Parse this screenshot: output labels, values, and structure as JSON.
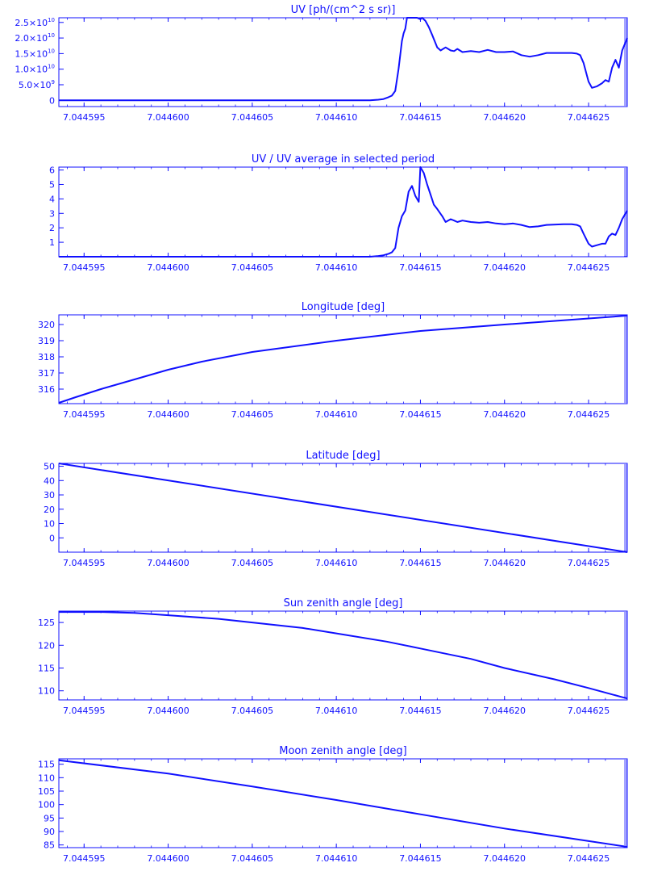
{
  "x_ticks": [
    "7.044595",
    "7.044600",
    "7.044605",
    "7.044610",
    "7.044615",
    "7.044620",
    "7.044625"
  ],
  "colors": {
    "ink": "#1010ff",
    "background": "#ffffff"
  },
  "chart_data": [
    {
      "type": "line",
      "title": "UV [ph/(cm^2 s sr)]",
      "xlim": [
        7.0445935,
        7.0446273
      ],
      "ylim": [
        -2000000000.0,
        26500000000.0
      ],
      "ytick_values": [
        0,
        5000000000.0,
        10000000000.0,
        15000000000.0,
        20000000000.0,
        25000000000.0
      ],
      "yticks": [
        {
          "mant": "0",
          "exp": ""
        },
        {
          "mant": "5.0×10",
          "exp": "9"
        },
        {
          "mant": "1.0×10",
          "exp": "10"
        },
        {
          "mant": "1.5×10",
          "exp": "10"
        },
        {
          "mant": "2.0×10",
          "exp": "10"
        },
        {
          "mant": "2.5×10",
          "exp": "10"
        }
      ],
      "x": [
        7.0445935,
        7.044605,
        7.044612,
        7.0446125,
        7.0446128,
        7.0446131,
        7.0446133,
        7.0446135,
        7.0446137,
        7.0446139,
        7.044614,
        7.0446141,
        7.0446142,
        7.0446143,
        7.0446145,
        7.0446148,
        7.044615,
        7.0446151,
        7.0446153,
        7.0446155,
        7.0446157,
        7.044616,
        7.0446162,
        7.0446165,
        7.0446168,
        7.044617,
        7.0446172,
        7.0446175,
        7.044618,
        7.0446185,
        7.044619,
        7.0446195,
        7.04462,
        7.0446205,
        7.044621,
        7.0446215,
        7.044622,
        7.0446225,
        7.0446235,
        7.044624,
        7.0446243,
        7.0446245,
        7.0446247,
        7.044625,
        7.0446252,
        7.0446255,
        7.0446258,
        7.044626,
        7.0446262,
        7.0446264,
        7.0446266,
        7.0446268,
        7.044627,
        7.0446273
      ],
      "y": [
        0,
        0,
        0,
        200000000.0,
        400000000.0,
        1000000000.0,
        1500000000.0,
        3000000000.0,
        10000000000.0,
        19000000000.0,
        21500000000.0,
        23000000000.0,
        26500000000.0,
        26500000000.0,
        26500000000.0,
        26500000000.0,
        26000000000.0,
        26500000000.0,
        25500000000.0,
        23500000000.0,
        21000000000.0,
        17000000000.0,
        16000000000.0,
        17000000000.0,
        16000000000.0,
        15800000000.0,
        16500000000.0,
        15500000000.0,
        15800000000.0,
        15500000000.0,
        16200000000.0,
        15500000000.0,
        15500000000.0,
        15700000000.0,
        14500000000.0,
        14000000000.0,
        14500000000.0,
        15200000000.0,
        15200000000.0,
        15200000000.0,
        15000000000.0,
        14500000000.0,
        12000000000.0,
        6000000000.0,
        4000000000.0,
        4500000000.0,
        5500000000.0,
        6500000000.0,
        6000000000.0,
        10500000000.0,
        13000000000.0,
        10500000000.0,
        16000000000.0,
        20000000000.0
      ]
    },
    {
      "type": "line",
      "title": "UV / UV average in selected period",
      "xlim": [
        7.0445935,
        7.0446273
      ],
      "ylim": [
        0,
        6.2
      ],
      "ytick_values": [
        1,
        2,
        3,
        4,
        5,
        6
      ],
      "yticks": [
        {
          "mant": "1"
        },
        {
          "mant": "2"
        },
        {
          "mant": "3"
        },
        {
          "mant": "4"
        },
        {
          "mant": "5"
        },
        {
          "mant": "6"
        }
      ],
      "x": [
        7.0445935,
        7.044605,
        7.044612,
        7.0446125,
        7.0446128,
        7.0446131,
        7.0446133,
        7.0446135,
        7.0446137,
        7.0446139,
        7.0446141,
        7.0446143,
        7.0446145,
        7.0446147,
        7.0446149,
        7.044615,
        7.0446152,
        7.0446154,
        7.0446156,
        7.0446158,
        7.044616,
        7.0446163,
        7.0446165,
        7.0446168,
        7.044617,
        7.0446172,
        7.0446175,
        7.044618,
        7.0446185,
        7.044619,
        7.0446195,
        7.04462,
        7.0446205,
        7.044621,
        7.0446215,
        7.044622,
        7.0446225,
        7.0446235,
        7.044624,
        7.0446243,
        7.0446245,
        7.0446247,
        7.044625,
        7.0446252,
        7.0446255,
        7.0446258,
        7.044626,
        7.0446262,
        7.0446264,
        7.0446266,
        7.0446268,
        7.044627,
        7.0446273
      ],
      "y": [
        0,
        0,
        0,
        0.05,
        0.1,
        0.2,
        0.3,
        0.6,
        2.0,
        2.8,
        3.2,
        4.5,
        4.9,
        4.2,
        3.8,
        6.2,
        5.8,
        5.0,
        4.3,
        3.6,
        3.3,
        2.8,
        2.4,
        2.6,
        2.5,
        2.4,
        2.5,
        2.4,
        2.35,
        2.4,
        2.3,
        2.25,
        2.3,
        2.2,
        2.05,
        2.1,
        2.2,
        2.25,
        2.25,
        2.2,
        2.1,
        1.6,
        0.9,
        0.7,
        0.8,
        0.9,
        0.9,
        1.4,
        1.6,
        1.5,
        2.0,
        2.6,
        3.2
      ]
    },
    {
      "type": "line",
      "title": "Longitude [deg]",
      "xlim": [
        7.0445935,
        7.0446273
      ],
      "ylim": [
        315.1,
        320.6
      ],
      "ytick_values": [
        316,
        317,
        318,
        319,
        320
      ],
      "yticks": [
        {
          "mant": "316"
        },
        {
          "mant": "317"
        },
        {
          "mant": "318"
        },
        {
          "mant": "319"
        },
        {
          "mant": "320"
        }
      ],
      "x": [
        7.0445935,
        7.0445945,
        7.044596,
        7.044598,
        7.0446,
        7.044602,
        7.044605,
        7.04461,
        7.044615,
        7.04462,
        7.0446273
      ],
      "y": [
        315.15,
        315.5,
        316.0,
        316.6,
        317.2,
        317.7,
        318.3,
        319.0,
        319.6,
        320.0,
        320.55
      ]
    },
    {
      "type": "line",
      "title": "Latitude [deg]",
      "xlim": [
        7.0445935,
        7.0446273
      ],
      "ylim": [
        -10,
        52
      ],
      "ytick_values": [
        0,
        10,
        20,
        30,
        40,
        50
      ],
      "yticks": [
        {
          "mant": "0"
        },
        {
          "mant": "10"
        },
        {
          "mant": "20"
        },
        {
          "mant": "30"
        },
        {
          "mant": "40"
        },
        {
          "mant": "50"
        }
      ],
      "x": [
        7.0445935,
        7.0446273
      ],
      "y": [
        52.0,
        -10.0
      ]
    },
    {
      "type": "line",
      "title": "Sun zenith angle [deg]",
      "xlim": [
        7.0445935,
        7.0446273
      ],
      "ylim": [
        108,
        127.5
      ],
      "ytick_values": [
        110,
        115,
        120,
        125
      ],
      "yticks": [
        {
          "mant": "110"
        },
        {
          "mant": "115"
        },
        {
          "mant": "120"
        },
        {
          "mant": "125"
        }
      ],
      "x": [
        7.0445935,
        7.044596,
        7.044598,
        7.0446,
        7.044603,
        7.044605,
        7.044608,
        7.04461,
        7.044613,
        7.044615,
        7.044618,
        7.04462,
        7.044623,
        7.044625,
        7.0446273
      ],
      "y": [
        127.3,
        127.3,
        127.1,
        126.6,
        125.8,
        125.0,
        123.8,
        122.6,
        120.8,
        119.3,
        117.0,
        115.0,
        112.5,
        110.6,
        108.3
      ]
    },
    {
      "type": "line",
      "title": "Moon zenith angle [deg]",
      "xlim": [
        7.0445935,
        7.0446273
      ],
      "ylim": [
        84,
        117
      ],
      "ytick_values": [
        85,
        90,
        95,
        100,
        105,
        110,
        115
      ],
      "yticks": [
        {
          "mant": "85"
        },
        {
          "mant": "90"
        },
        {
          "mant": "95"
        },
        {
          "mant": "100"
        },
        {
          "mant": "105"
        },
        {
          "mant": "110"
        },
        {
          "mant": "115"
        }
      ],
      "x": [
        7.0445935,
        7.0446,
        7.044605,
        7.04461,
        7.044615,
        7.04462,
        7.0446273
      ],
      "y": [
        116.5,
        111.5,
        106.7,
        101.7,
        96.4,
        91.1,
        84.3
      ]
    }
  ]
}
